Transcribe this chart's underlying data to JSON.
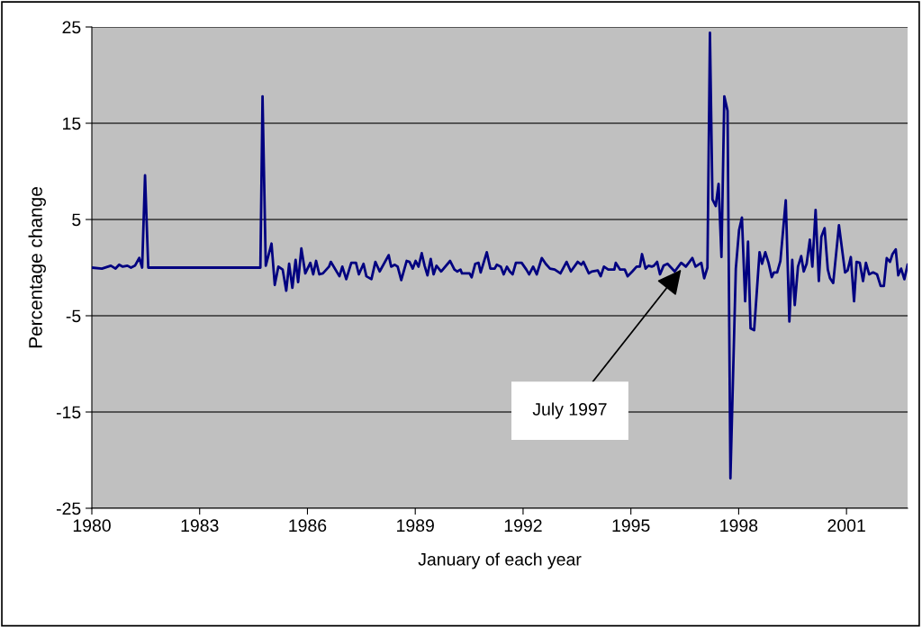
{
  "chart_data": {
    "type": "line",
    "xlabel": "January of each year",
    "ylabel": "Percentage change",
    "xlim": [
      1980,
      2002.7
    ],
    "xticks": [
      1980,
      1983,
      1986,
      1989,
      1992,
      1995,
      1998,
      2001
    ],
    "ylim": [
      -25,
      25
    ],
    "yticks": [
      -25,
      -15,
      -5,
      5,
      15,
      25
    ],
    "grid": "y",
    "marker": "none",
    "line_style": "solid",
    "annotations": [
      {
        "text": "July 1997",
        "x": 1996.4,
        "y": -0.2
      }
    ],
    "series": [
      {
        "color": "#000080",
        "x": [
          1980.0,
          1980.28,
          1980.53,
          1980.66,
          1980.76,
          1980.86,
          1980.99,
          1981.09,
          1981.2,
          1981.32,
          1981.4,
          1981.48,
          1981.57,
          1984.69,
          1984.75,
          1984.84,
          1985.0,
          1985.09,
          1985.19,
          1985.31,
          1985.41,
          1985.49,
          1985.58,
          1985.67,
          1985.74,
          1985.83,
          1985.94,
          1986.08,
          1986.16,
          1986.24,
          1986.33,
          1986.43,
          1986.6,
          1986.65,
          1986.89,
          1986.97,
          1987.08,
          1987.22,
          1987.35,
          1987.43,
          1987.56,
          1987.64,
          1987.78,
          1987.89,
          1988.01,
          1988.26,
          1988.33,
          1988.43,
          1988.51,
          1988.61,
          1988.76,
          1988.84,
          1988.93,
          1989.01,
          1989.09,
          1989.18,
          1989.26,
          1989.34,
          1989.43,
          1989.51,
          1989.59,
          1989.72,
          1989.97,
          1990.09,
          1990.17,
          1990.26,
          1990.3,
          1990.51,
          1990.57,
          1990.67,
          1990.76,
          1990.82,
          1990.99,
          1991.09,
          1991.21,
          1991.27,
          1991.38,
          1991.46,
          1991.55,
          1991.63,
          1991.71,
          1991.8,
          1991.96,
          1992.09,
          1992.17,
          1992.28,
          1992.38,
          1992.52,
          1992.63,
          1992.75,
          1992.88,
          1993.04,
          1993.21,
          1993.33,
          1993.52,
          1993.62,
          1993.68,
          1993.83,
          1993.91,
          1994.08,
          1994.16,
          1994.25,
          1994.37,
          1994.54,
          1994.58,
          1994.7,
          1994.83,
          1994.91,
          1995.04,
          1995.16,
          1995.25,
          1995.31,
          1995.41,
          1995.49,
          1995.58,
          1995.64,
          1995.73,
          1995.81,
          1995.91,
          1996.02,
          1996.22,
          1996.4,
          1996.53,
          1996.71,
          1996.8,
          1996.96,
          1997.04,
          1997.13,
          1997.2,
          1997.27,
          1997.36,
          1997.44,
          1997.52,
          1997.6,
          1997.69,
          1997.77,
          1997.92,
          1998.01,
          1998.09,
          1998.18,
          1998.26,
          1998.33,
          1998.43,
          1998.58,
          1998.65,
          1998.74,
          1998.83,
          1998.92,
          1998.98,
          1999.07,
          1999.16,
          1999.31,
          1999.41,
          1999.49,
          1999.56,
          1999.65,
          1999.74,
          1999.81,
          1999.89,
          1999.98,
          2000.05,
          2000.14,
          2000.23,
          2000.3,
          2000.39,
          2000.48,
          2000.54,
          2000.63,
          2000.79,
          2000.96,
          2001.03,
          2001.12,
          2001.21,
          2001.28,
          2001.37,
          2001.46,
          2001.54,
          2001.63,
          2001.74,
          2001.85,
          2001.95,
          2002.04,
          2002.12,
          2002.21,
          2002.28,
          2002.37,
          2002.44,
          2002.52,
          2002.61,
          2002.7
        ],
        "values": [
          0.0,
          -0.1,
          0.2,
          -0.1,
          0.3,
          0.1,
          0.2,
          0.0,
          0.2,
          1.0,
          0.0,
          9.6,
          0.0,
          0.0,
          17.8,
          0.2,
          2.5,
          -1.8,
          0.1,
          -0.2,
          -2.4,
          0.4,
          -2.1,
          0.8,
          -1.5,
          2.0,
          -0.6,
          0.5,
          -0.7,
          0.7,
          -0.7,
          -0.6,
          0.1,
          0.6,
          -0.9,
          0.1,
          -1.2,
          0.5,
          0.5,
          -0.7,
          0.4,
          -0.9,
          -1.2,
          0.6,
          -0.4,
          1.3,
          0.1,
          0.3,
          0.1,
          -1.3,
          0.7,
          0.6,
          -0.1,
          0.7,
          0.1,
          1.5,
          0.2,
          -0.8,
          0.9,
          -0.7,
          0.2,
          -0.4,
          0.7,
          -0.2,
          -0.4,
          -0.2,
          -0.6,
          -0.6,
          -1.0,
          0.4,
          0.5,
          -0.5,
          1.6,
          -0.1,
          -0.1,
          0.3,
          0.1,
          -0.7,
          0.1,
          -0.4,
          -0.7,
          0.5,
          0.5,
          -0.2,
          -0.7,
          0.1,
          -0.7,
          1.0,
          0.4,
          -0.1,
          -0.2,
          -0.6,
          0.6,
          -0.4,
          0.6,
          0.3,
          0.6,
          -0.6,
          -0.4,
          -0.3,
          -0.9,
          0.1,
          -0.2,
          -0.2,
          0.5,
          -0.2,
          -0.2,
          -0.9,
          -0.4,
          0.1,
          0.1,
          1.4,
          -0.1,
          0.2,
          0.1,
          0.2,
          0.6,
          -0.7,
          0.2,
          0.4,
          -0.4,
          0.5,
          0.1,
          1.0,
          0.1,
          0.5,
          -1.1,
          0.0,
          24.4,
          7.1,
          6.4,
          8.7,
          1.1,
          17.8,
          16.3,
          -21.9,
          -0.1,
          3.9,
          5.2,
          -3.5,
          2.7,
          -6.3,
          -6.5,
          1.6,
          0.4,
          1.6,
          0.5,
          -1.0,
          -0.5,
          -0.5,
          0.7,
          7.0,
          -5.6,
          0.8,
          -3.9,
          0.1,
          1.2,
          -0.4,
          0.4,
          2.9,
          0.1,
          6.0,
          -1.4,
          3.2,
          4.1,
          -0.2,
          -1.1,
          -1.6,
          4.4,
          -0.5,
          -0.3,
          1.1,
          -3.5,
          0.6,
          0.5,
          -1.4,
          0.5,
          -0.7,
          -0.5,
          -0.7,
          -1.9,
          -1.9,
          1.0,
          0.6,
          1.4,
          1.9,
          -0.8,
          -0.1,
          -1.2,
          0.3
        ]
      }
    ]
  }
}
